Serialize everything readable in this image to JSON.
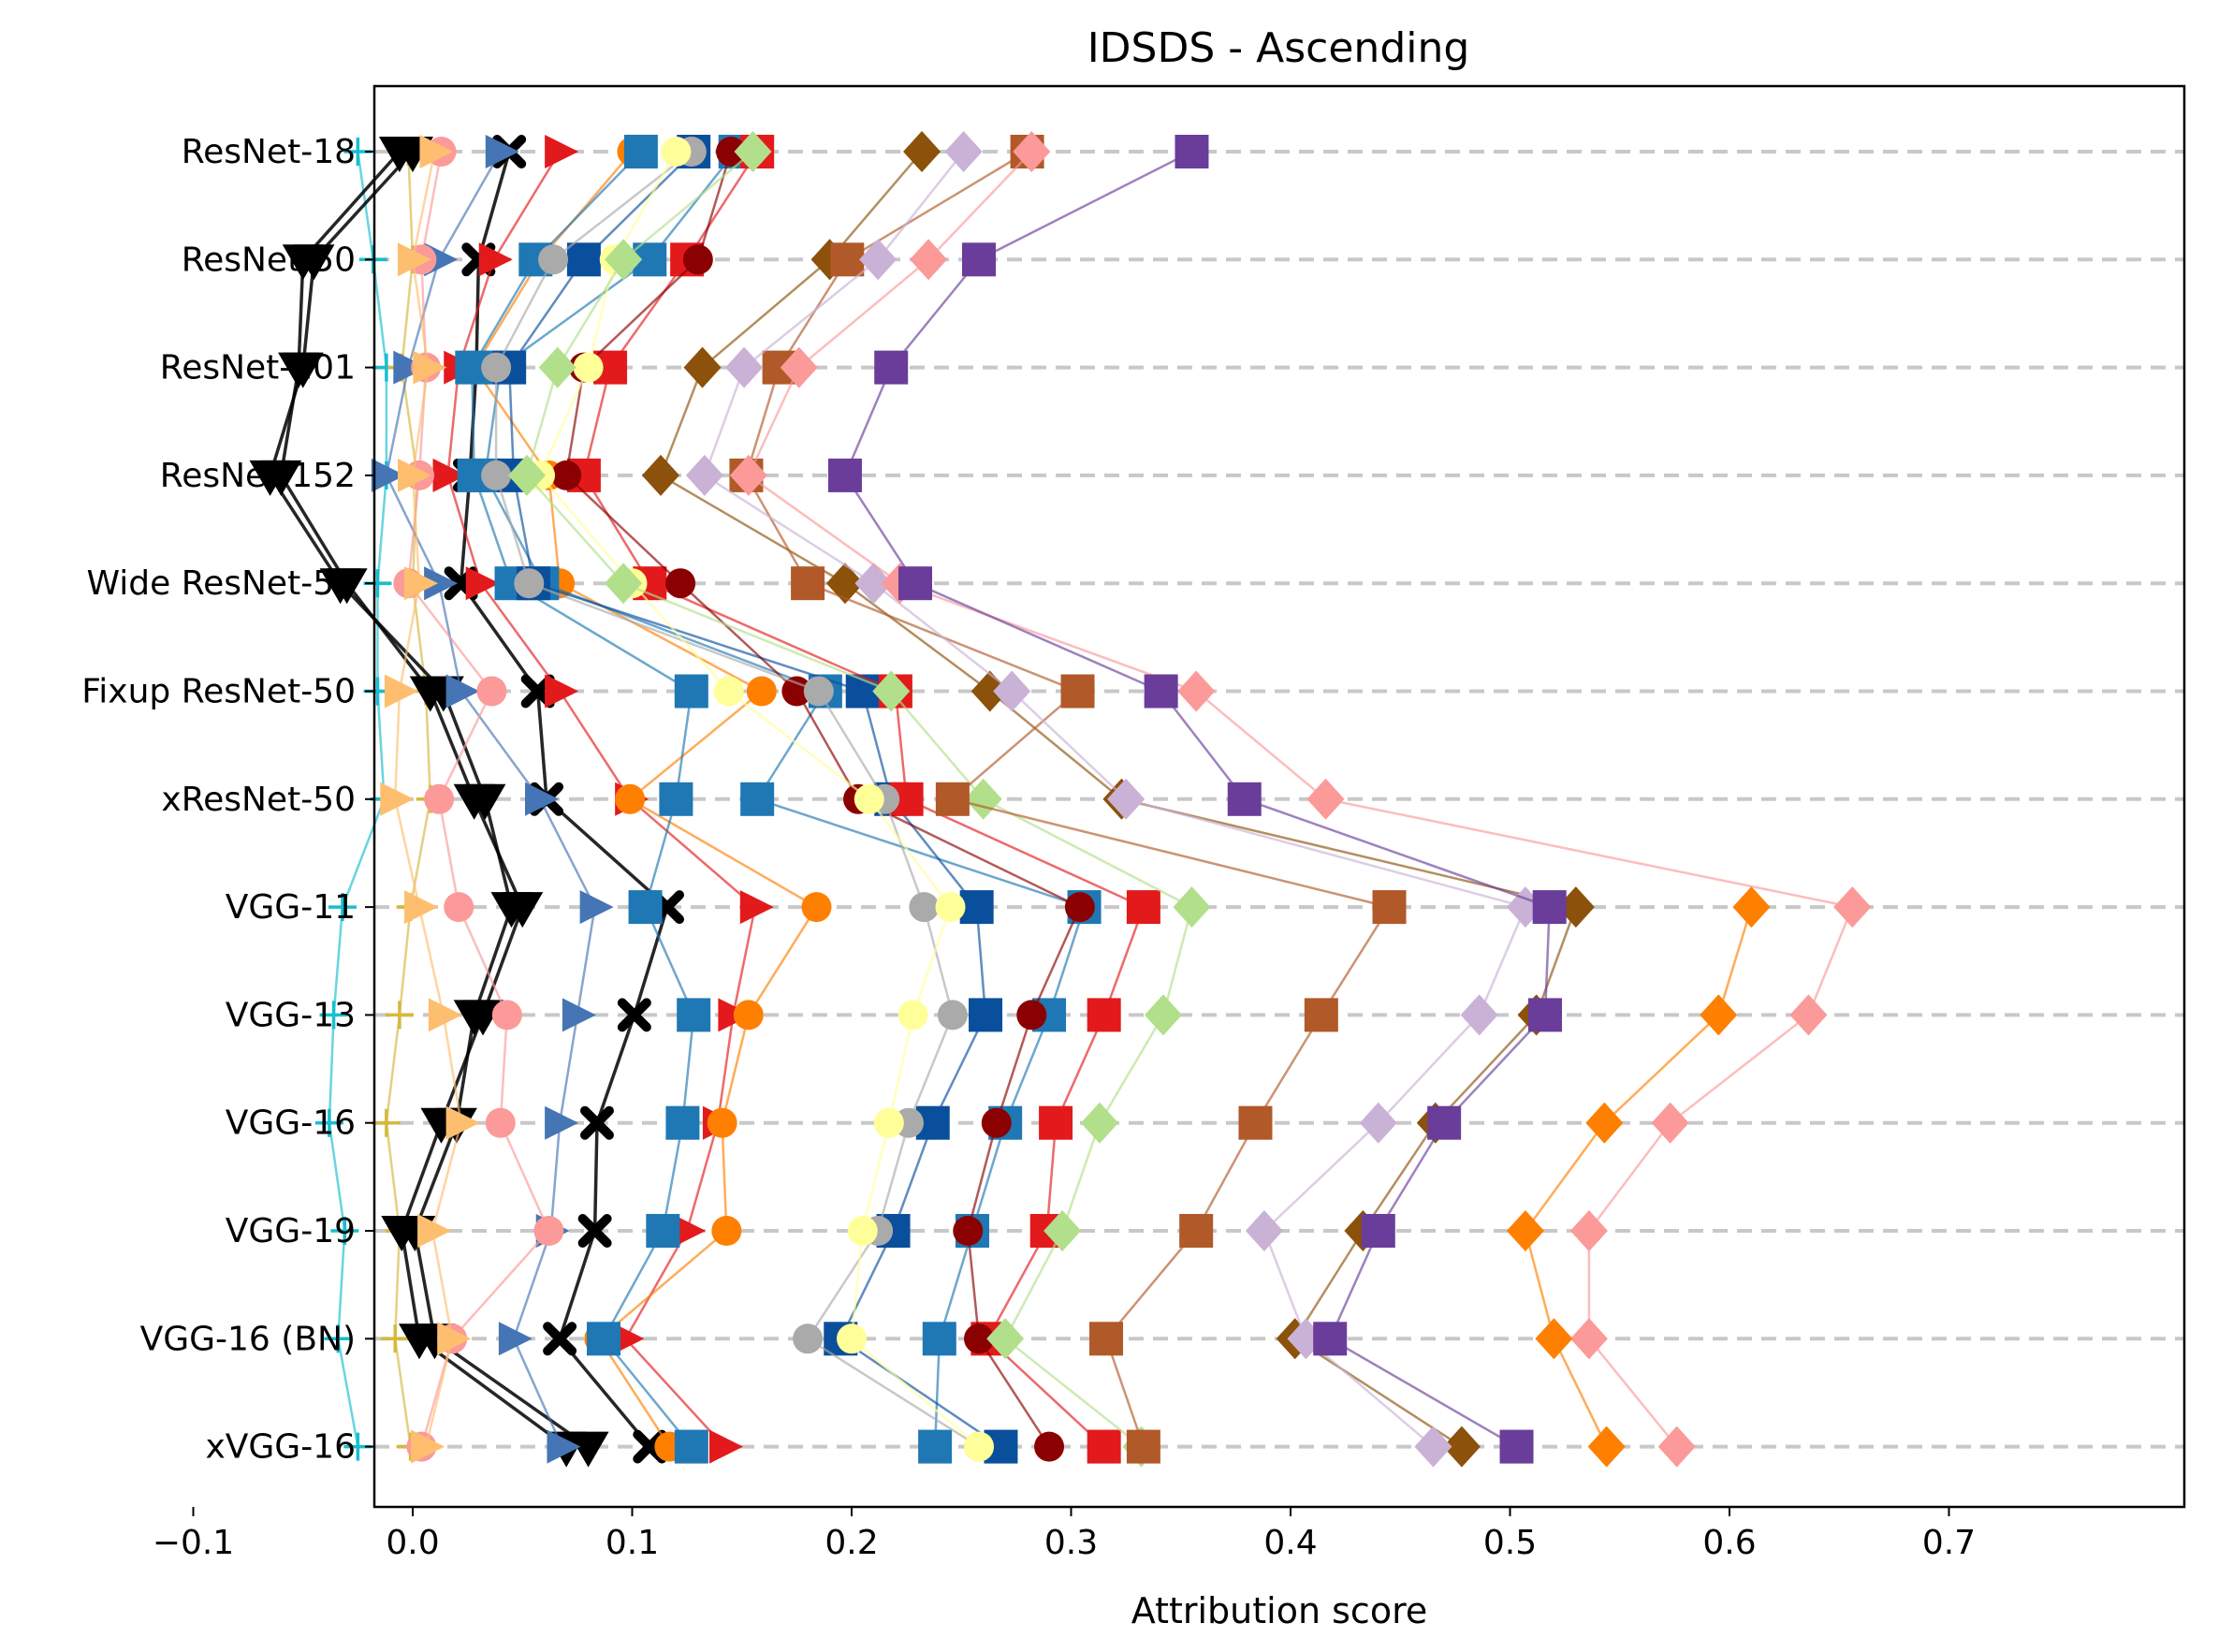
{
  "chart_data": {
    "type": "line",
    "title": "IDSDS - Ascending",
    "xlabel": "Attribution score",
    "ylabel": "",
    "xlim": [
      -0.117,
      0.707
    ],
    "xticks": [
      -0.1,
      0.0,
      0.1,
      0.2,
      0.3,
      0.4,
      0.5,
      0.6,
      0.7
    ],
    "xtick_labels": [
      "−0.1",
      "0.0",
      "0.1",
      "0.2",
      "0.3",
      "0.4",
      "0.5",
      "0.6",
      "0.7"
    ],
    "categories": [
      "ResNet-18",
      "ResNet-50",
      "ResNet-101",
      "ResNet-152",
      "Wide ResNet-50",
      "Fixup ResNet-50",
      "xResNet-50",
      "VGG-11",
      "VGG-13",
      "VGG-16",
      "VGG-19",
      "VGG-16 (BN)",
      "xVGG-16"
    ],
    "grid": "horizontal dashed",
    "series": [
      {
        "color": "#17becf",
        "marker": "plus",
        "values": [
          -0.025,
          -0.018,
          -0.012,
          -0.012,
          -0.016,
          -0.016,
          -0.013,
          -0.032,
          -0.036,
          -0.038,
          -0.031,
          -0.034,
          -0.025
        ]
      },
      {
        "color": "#d4b93c",
        "marker": "plus",
        "values": [
          -0.002,
          0.0,
          -0.005,
          0.002,
          0.0,
          0.006,
          0.008,
          -0.001,
          -0.006,
          -0.012,
          -0.006,
          -0.008,
          -0.001
        ]
      },
      {
        "color": "#000000",
        "marker": "triangle_down",
        "values": [
          -0.006,
          -0.05,
          -0.052,
          -0.06,
          -0.03,
          0.008,
          0.028,
          0.05,
          0.032,
          0.013,
          -0.005,
          0.003,
          0.07
        ]
      },
      {
        "color": "#000000",
        "marker": "triangle_down",
        "values": [
          0.0,
          -0.045,
          -0.05,
          -0.065,
          -0.033,
          0.014,
          0.033,
          0.045,
          0.028,
          0.02,
          0.001,
          0.01,
          0.08
        ]
      },
      {
        "color": "#000000",
        "marker": "x",
        "values": [
          0.044,
          0.03,
          0.029,
          0.026,
          0.022,
          0.057,
          0.061,
          0.116,
          0.101,
          0.084,
          0.083,
          0.067,
          0.108
        ]
      },
      {
        "color": "#4575b4",
        "marker": "triangle_right",
        "values": [
          0.04,
          0.012,
          -0.002,
          -0.012,
          0.012,
          0.022,
          0.058,
          0.083,
          0.075,
          0.067,
          0.063,
          0.046,
          0.068
        ]
      },
      {
        "color": "#e31a1c",
        "marker": "triangle_right",
        "values": [
          0.067,
          0.037,
          0.021,
          0.016,
          0.031,
          0.067,
          0.099,
          0.156,
          0.146,
          0.139,
          0.125,
          0.097,
          0.142
        ]
      },
      {
        "color": "#fb9a99",
        "marker": "circle",
        "values": [
          0.013,
          0.004,
          0.006,
          0.003,
          -0.002,
          0.036,
          0.012,
          0.021,
          0.043,
          0.04,
          0.062,
          0.018,
          0.004
        ]
      },
      {
        "color": "#fdbf6f",
        "marker": "triangle_right",
        "values": [
          0.01,
          0.0,
          0.007,
          0.0,
          0.003,
          -0.006,
          -0.008,
          0.003,
          0.014,
          0.022,
          0.009,
          0.018,
          0.006
        ]
      },
      {
        "color": "#ff7f00",
        "marker": "circle",
        "values": [
          0.1,
          0.058,
          0.028,
          0.062,
          0.067,
          0.159,
          0.099,
          0.184,
          0.153,
          0.141,
          0.143,
          0.085,
          0.117
        ]
      },
      {
        "color": "#1f78b4",
        "marker": "square",
        "values": [
          0.104,
          0.056,
          0.027,
          0.028,
          0.045,
          0.127,
          0.12,
          0.106,
          0.128,
          0.123,
          0.114,
          0.087,
          0.127
        ]
      },
      {
        "color": "#1f78b4",
        "marker": "square",
        "values": [
          0.147,
          0.108,
          0.04,
          0.033,
          0.059,
          0.188,
          0.157,
          0.306,
          0.29,
          0.27,
          0.255,
          0.24,
          0.238
        ]
      },
      {
        "color": "#0a4f9c",
        "marker": "square",
        "values": [
          0.128,
          0.078,
          0.044,
          0.046,
          0.055,
          0.205,
          0.218,
          0.257,
          0.261,
          0.237,
          0.219,
          0.195,
          0.268
        ]
      },
      {
        "color": "#e31a1c",
        "marker": "square",
        "values": [
          0.157,
          0.125,
          0.09,
          0.078,
          0.108,
          0.22,
          0.225,
          0.333,
          0.315,
          0.293,
          0.289,
          0.262,
          0.315
        ]
      },
      {
        "color": "#8b0000",
        "marker": "circle",
        "values": [
          0.145,
          0.13,
          0.078,
          0.07,
          0.122,
          0.175,
          0.203,
          0.304,
          0.282,
          0.266,
          0.253,
          0.258,
          0.29
        ]
      },
      {
        "color": "#aaaaaa",
        "marker": "circle",
        "values": [
          0.127,
          0.064,
          0.038,
          0.038,
          0.053,
          0.185,
          0.215,
          0.233,
          0.246,
          0.226,
          0.212,
          0.18,
          0.258
        ]
      },
      {
        "color": "#ffff99",
        "marker": "circle",
        "values": [
          0.12,
          0.092,
          0.08,
          0.058,
          0.1,
          0.144,
          0.208,
          0.245,
          0.228,
          0.217,
          0.205,
          0.2,
          0.258
        ]
      },
      {
        "color": "#b2df8a",
        "marker": "diamond",
        "values": [
          0.155,
          0.096,
          0.066,
          0.052,
          0.096,
          0.218,
          0.26,
          0.355,
          0.342,
          0.313,
          0.296,
          0.27,
          0.332
        ]
      },
      {
        "color": "#8c510a",
        "marker": "diamond",
        "values": [
          0.232,
          0.19,
          0.132,
          0.113,
          0.197,
          0.263,
          0.323,
          0.53,
          0.512,
          0.466,
          0.433,
          0.402,
          0.478
        ]
      },
      {
        "color": "#b15928",
        "marker": "square",
        "values": [
          0.28,
          0.198,
          0.167,
          0.152,
          0.18,
          0.303,
          0.246,
          0.445,
          0.414,
          0.384,
          0.357,
          0.316,
          0.333
        ]
      },
      {
        "color": "#cab2d6",
        "marker": "diamond",
        "values": [
          0.251,
          0.212,
          0.151,
          0.133,
          0.21,
          0.273,
          0.325,
          0.507,
          0.486,
          0.44,
          0.388,
          0.407,
          0.465
        ]
      },
      {
        "color": "#fb9a99",
        "marker": "diamond",
        "values": [
          0.282,
          0.235,
          0.176,
          0.153,
          0.222,
          0.357,
          0.416,
          0.656,
          0.636,
          0.573,
          0.536,
          0.536,
          0.576
        ]
      },
      {
        "color": "#6a3d9a",
        "marker": "square",
        "values": [
          0.355,
          0.258,
          0.218,
          0.197,
          0.229,
          0.341,
          0.379,
          0.518,
          0.516,
          0.47,
          0.44,
          0.418,
          0.503
        ]
      },
      {
        "color": "#ff7f00",
        "marker": "diamond",
        "values": [
          null,
          null,
          null,
          null,
          null,
          null,
          null,
          0.61,
          0.595,
          0.543,
          0.507,
          0.52,
          0.544
        ]
      }
    ]
  }
}
